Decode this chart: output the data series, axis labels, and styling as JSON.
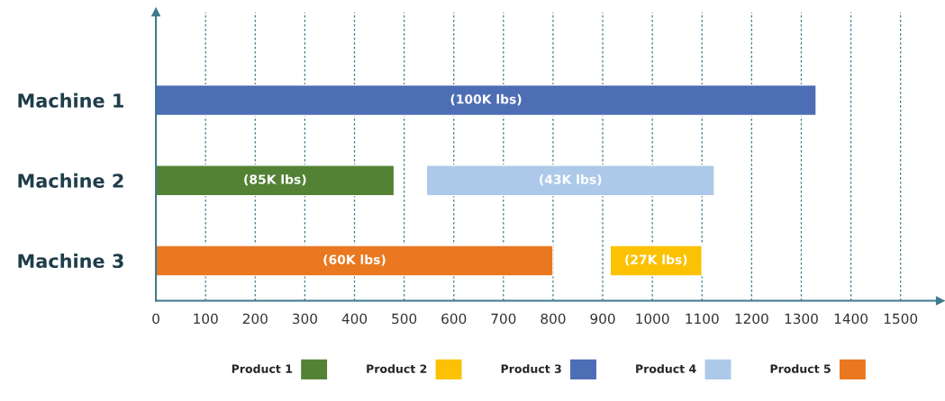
{
  "chart_data": {
    "type": "bar",
    "orientation": "horizontal",
    "categories": [
      "Machine 1",
      "Machine 2",
      "Machine 3"
    ],
    "series": [
      {
        "name": "Product 1",
        "color": "#548235",
        "values": [
          null,
          480,
          null
        ],
        "base": [
          null,
          0,
          null
        ]
      },
      {
        "name": "Product 2",
        "color": "#fbc102",
        "values": [
          null,
          null,
          185
        ],
        "base": [
          null,
          null,
          915
        ]
      },
      {
        "name": "Product 3",
        "color": "#4d6db5",
        "values": [
          1330,
          null,
          null
        ],
        "base": [
          0,
          null,
          null
        ]
      },
      {
        "name": "Product 4",
        "color": "#adc9e9",
        "values": [
          null,
          580,
          null
        ],
        "base": [
          null,
          545,
          null
        ]
      },
      {
        "name": "Product 5",
        "color": "#e97820",
        "values": [
          null,
          null,
          800
        ],
        "base": [
          null,
          null,
          0
        ]
      }
    ],
    "annotations": [
      "(100K lbs)",
      "(85K lbs)",
      "(43K lbs)",
      "(60K lbs)",
      "(27K lbs)"
    ],
    "xlim": [
      0,
      1580
    ],
    "xticks": [
      0,
      100,
      200,
      300,
      400,
      500,
      600,
      700,
      800,
      900,
      1000,
      1100,
      1200,
      1300,
      1400,
      1500
    ],
    "grid": "x",
    "legend": "bottom"
  }
}
